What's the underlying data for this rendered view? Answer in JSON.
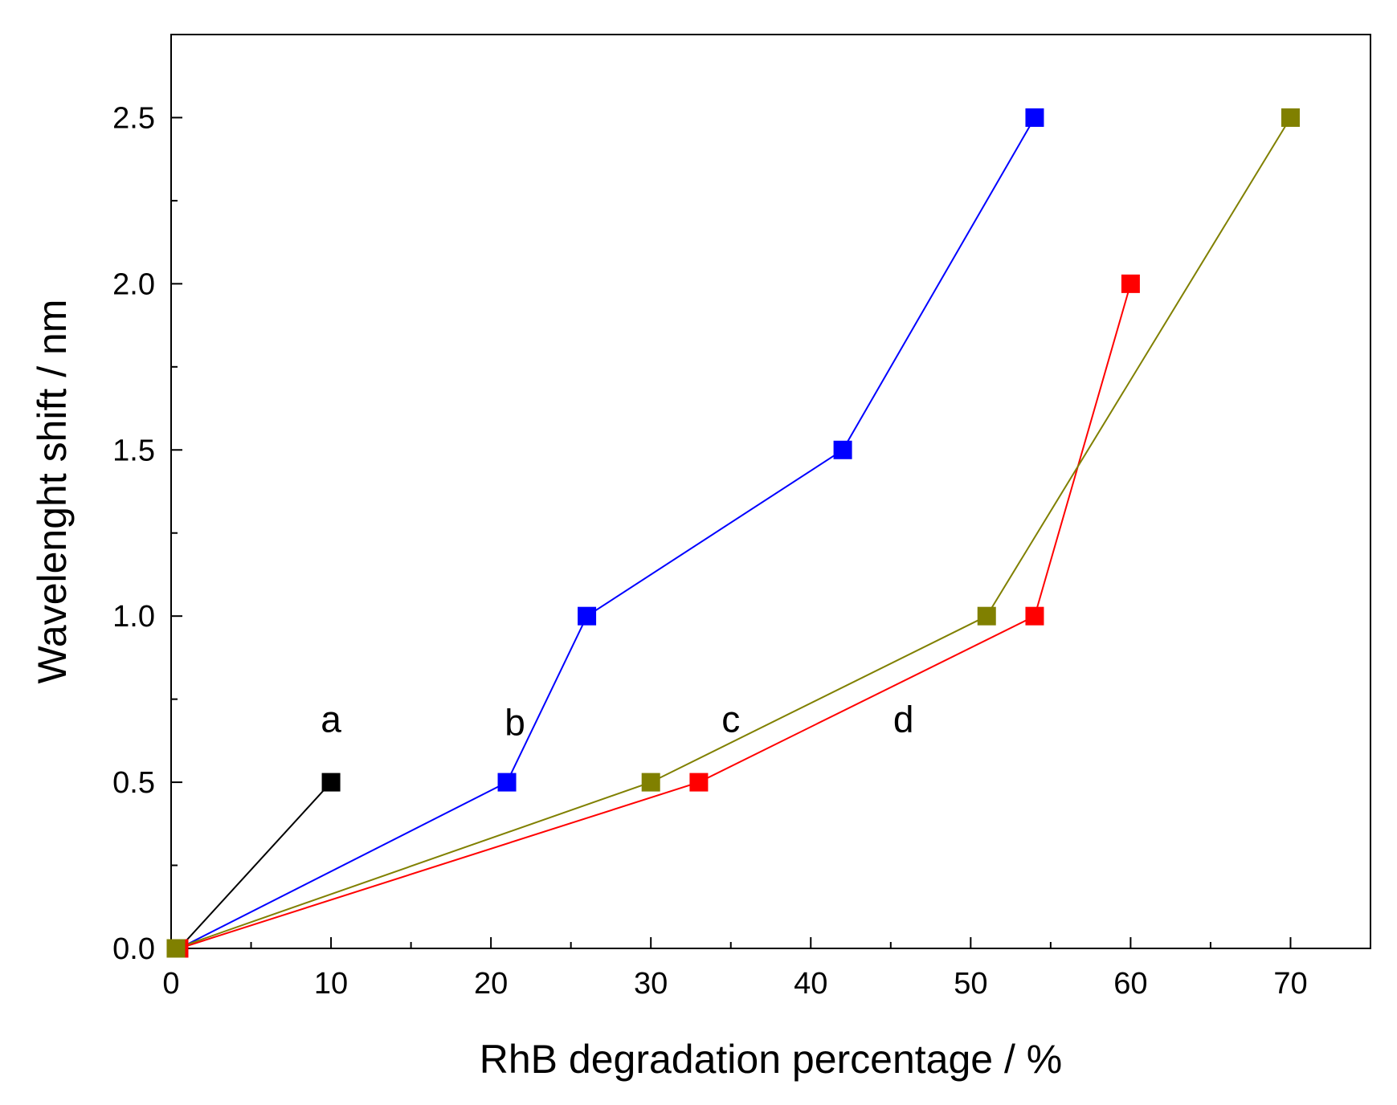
{
  "chart_data": {
    "type": "line",
    "title": "",
    "xlabel": "RhB degradation percentage / %",
    "ylabel": "Wavelenght shift / nm",
    "xlim": [
      0,
      75
    ],
    "ylim": [
      0,
      2.75
    ],
    "xticks": [
      0,
      10,
      20,
      30,
      40,
      50,
      60,
      70
    ],
    "xtick_labels": [
      "0",
      "10",
      "20",
      "30",
      "40",
      "50",
      "60",
      "70"
    ],
    "x_minor_ticks": [
      5,
      15,
      25,
      35,
      45,
      55,
      65
    ],
    "yticks": [
      0,
      0.5,
      1.0,
      1.5,
      2.0,
      2.5
    ],
    "ytick_labels": [
      "0.0",
      "0.5",
      "1.0",
      "1.5",
      "2.0",
      "2.5"
    ],
    "y_minor_ticks": [
      0.25,
      0.75,
      1.25,
      1.75,
      2.25
    ],
    "grid": false,
    "series": [
      {
        "name": "a",
        "color": "#000000",
        "x": [
          0.5,
          10
        ],
        "y": [
          0,
          0.5
        ]
      },
      {
        "name": "b",
        "color": "#0000ff",
        "x": [
          0.5,
          21,
          26,
          42,
          54
        ],
        "y": [
          0,
          0.5,
          1.0,
          1.5,
          2.5
        ]
      },
      {
        "name": "d",
        "color": "#ff0000",
        "x": [
          0.5,
          33,
          54,
          60
        ],
        "y": [
          0,
          0.5,
          1.0,
          2.0
        ]
      },
      {
        "name": "c",
        "color": "#808000",
        "x": [
          0.3,
          30,
          51,
          70
        ],
        "y": [
          0,
          0.5,
          1.0,
          2.5
        ]
      }
    ],
    "annotations": [
      {
        "text": "a",
        "x": 10,
        "y": 0.69
      },
      {
        "text": "b",
        "x": 21.5,
        "y": 0.68
      },
      {
        "text": "c",
        "x": 35,
        "y": 0.69
      },
      {
        "text": "d",
        "x": 45.8,
        "y": 0.69
      }
    ]
  }
}
